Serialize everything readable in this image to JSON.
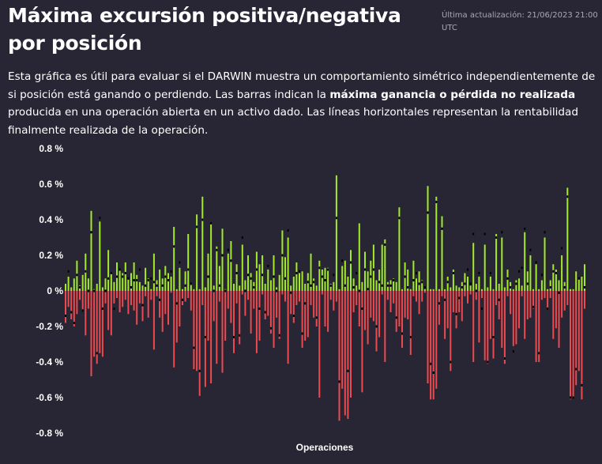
{
  "header": {
    "title": "Máxima excursión positiva/negativa por posición",
    "updated": "Última actualización: 21/06/2023 21:00 UTC"
  },
  "description": {
    "part1": "Esta gráfica es útil para evaluar si el DARWIN muestra un comportamiento simétrico independientemente de si posición está ganando o perdiendo. Las barras indican la ",
    "bold": "máxima ganancia o pérdida no realizada",
    "part2": " producida en una operación abierta en un activo dado. Las líneas horizontales representan la rentabilidad finalmente realizada de la operación."
  },
  "colors": {
    "positive": "#a2ea2a",
    "negative": "#ec4a4f",
    "realized": "#000000",
    "background": "#282634"
  },
  "chart_data": {
    "type": "bar",
    "title": "Máxima excursión positiva/negativa por posición",
    "xlabel": "Operaciones",
    "ylabel": "",
    "ylim": [
      -0.85,
      0.8
    ],
    "y_ticks": [
      {
        "value": 0.8,
        "label": "0.8 %"
      },
      {
        "value": 0.6,
        "label": "0.6 %"
      },
      {
        "value": 0.4,
        "label": "0.4 %"
      },
      {
        "value": 0.2,
        "label": "0.2 %"
      },
      {
        "value": 0,
        "label": "0 %"
      },
      {
        "value": -0.2,
        "label": "-0.2 %"
      },
      {
        "value": -0.4,
        "label": "-0.4 %"
      },
      {
        "value": -0.6,
        "label": "-0.6 %"
      },
      {
        "value": -0.8,
        "label": "-0.8 %"
      }
    ],
    "series_fields": [
      "max_gain_pct",
      "max_loss_pct",
      "realized_pct"
    ],
    "operations": [
      [
        0.04,
        -0.18,
        -0.14
      ],
      [
        0.08,
        -0.09,
        0.11
      ],
      [
        0.02,
        -0.16,
        -0.12
      ],
      [
        0.07,
        -0.2,
        -0.18
      ],
      [
        0.17,
        -0.13,
        0.09
      ],
      [
        0.03,
        -0.05,
        0.02
      ],
      [
        0.09,
        -0.11,
        -0.11
      ],
      [
        0.21,
        -0.25,
        0.11
      ],
      [
        0.07,
        -0.1,
        0.0
      ],
      [
        0.45,
        -0.48,
        0.33
      ],
      [
        0.01,
        -0.37,
        0.0
      ],
      [
        0.04,
        -0.41,
        -0.35
      ],
      [
        0.39,
        -0.35,
        0.41
      ],
      [
        0.02,
        -0.37,
        -0.1
      ],
      [
        0.07,
        -0.07,
        0.0
      ],
      [
        0.23,
        -0.22,
        0.07
      ],
      [
        0.1,
        -0.25,
        0.1
      ],
      [
        0.05,
        -0.07,
        -0.1
      ],
      [
        0.16,
        -0.04,
        0.08
      ],
      [
        0.12,
        -0.12,
        0.12
      ],
      [
        0.1,
        -0.09,
        0.08
      ],
      [
        0.16,
        -0.05,
        0.1
      ],
      [
        0.07,
        -0.13,
        0.07
      ],
      [
        0.1,
        -0.08,
        0.02
      ],
      [
        0.16,
        -0.11,
        0.06
      ],
      [
        0.09,
        -0.19,
        0.06
      ],
      [
        0.05,
        -0.07,
        0.12
      ],
      [
        0.03,
        -0.17,
        -0.08
      ],
      [
        0.13,
        -0.03,
        0.03
      ],
      [
        0.07,
        -0.15,
        0.06
      ],
      [
        0.01,
        -0.05,
        0.07
      ],
      [
        0.21,
        -0.33,
        0.05
      ],
      [
        0.06,
        -0.03,
        0.03
      ],
      [
        0.12,
        -0.15,
        -0.05
      ],
      [
        0.07,
        -0.23,
        0.03
      ],
      [
        0.14,
        -0.13,
        0.08
      ],
      [
        0.1,
        -0.19,
        0.06
      ],
      [
        0.08,
        -0.01,
        0.11
      ],
      [
        0.36,
        -0.43,
        0.25
      ],
      [
        0.01,
        -0.29,
        -0.07
      ],
      [
        0.13,
        -0.2,
        0.16
      ],
      [
        0.01,
        -0.08,
        -0.05
      ],
      [
        0.11,
        -0.06,
        0.03
      ],
      [
        0.32,
        -0.04,
        0.12
      ],
      [
        0.04,
        -0.11,
        0.04
      ],
      [
        0.01,
        -0.44,
        -0.32
      ],
      [
        0.43,
        -0.45,
        0.36
      ],
      [
        0.01,
        -0.59,
        -0.45
      ],
      [
        0.53,
        -0.08,
        0.4
      ],
      [
        0.02,
        -0.54,
        -0.26
      ],
      [
        0.21,
        -0.28,
        0.08
      ],
      [
        0.38,
        -0.52,
        0.38
      ],
      [
        0.03,
        -0.17,
        0.0
      ],
      [
        0.25,
        -0.41,
        0.23
      ],
      [
        0.14,
        -0.06,
        0.03
      ],
      [
        0.35,
        -0.46,
        0.2
      ],
      [
        0.01,
        -0.28,
        0.0
      ],
      [
        0.21,
        -0.1,
        0.23
      ],
      [
        0.28,
        -0.18,
        0.17
      ],
      [
        0.04,
        -0.35,
        -0.26
      ],
      [
        0.15,
        -0.07,
        0.1
      ],
      [
        0.03,
        -0.3,
        -0.25
      ],
      [
        0.26,
        -0.02,
        0.3
      ],
      [
        0.06,
        -0.14,
        0.0
      ],
      [
        0.2,
        -0.05,
        0.09
      ],
      [
        0.1,
        -0.24,
        0.07
      ],
      [
        0.05,
        -0.1,
        0.02
      ],
      [
        0.22,
        -0.35,
        0.12
      ],
      [
        0.15,
        -0.28,
        -0.1
      ],
      [
        0.2,
        -0.02,
        0.09
      ],
      [
        0.04,
        -0.16,
        -0.12
      ],
      [
        0.12,
        -0.14,
        0.14
      ],
      [
        0.06,
        -0.24,
        -0.21
      ],
      [
        0.2,
        -0.32,
        0.08
      ],
      [
        0.02,
        -0.15,
        0.0
      ],
      [
        0.09,
        -0.27,
        -0.25
      ],
      [
        0.34,
        -0.02,
        0.2
      ],
      [
        0.19,
        -0.06,
        0.07
      ],
      [
        0.3,
        -0.41,
        0.34
      ],
      [
        0.03,
        -0.13,
        -0.01
      ],
      [
        0.08,
        -0.18,
        -0.14
      ],
      [
        0.16,
        -0.08,
        0.1
      ],
      [
        0.1,
        -0.06,
        0.11
      ],
      [
        0.11,
        -0.32,
        -0.24
      ],
      [
        0.04,
        -0.28,
        -0.07
      ],
      [
        0.1,
        -0.26,
        0.05
      ],
      [
        0.21,
        -0.08,
        0.03
      ],
      [
        0.07,
        -0.15,
        0.05
      ],
      [
        0.03,
        -0.2,
        -0.15
      ],
      [
        0.17,
        -0.6,
        0.13
      ],
      [
        0.12,
        -0.02,
        0.08
      ],
      [
        0.13,
        -0.2,
        0.06
      ],
      [
        0.13,
        -0.23,
        0.12
      ],
      [
        0.04,
        -0.05,
        0.03
      ],
      [
        0.05,
        -0.11,
        0.09
      ],
      [
        0.65,
        -0.06,
        0.41
      ],
      [
        0.01,
        -0.73,
        -0.51
      ],
      [
        0.14,
        -0.55,
        0.17
      ],
      [
        0.17,
        -0.7,
        0.03
      ],
      [
        0.08,
        -0.72,
        -0.45
      ],
      [
        0.23,
        -0.6,
        0.16
      ],
      [
        0.07,
        -0.12,
        0.02
      ],
      [
        0.03,
        -0.08,
        0.1
      ],
      [
        0.38,
        -0.2,
        0.0
      ],
      [
        0.05,
        -0.57,
        -0.1
      ],
      [
        0.22,
        -0.22,
        0.12
      ],
      [
        0.11,
        -0.3,
        0.01
      ],
      [
        0.17,
        -0.15,
        0.08
      ],
      [
        0.26,
        -0.17,
        0.12
      ],
      [
        0.06,
        -0.34,
        -0.2
      ],
      [
        0.12,
        -0.26,
        0.05
      ],
      [
        0.26,
        -0.02,
        0.03
      ],
      [
        0.29,
        -0.4,
        0.26
      ],
      [
        0.05,
        -0.05,
        0.03
      ],
      [
        0.06,
        -0.12,
        0.03
      ],
      [
        0.07,
        -0.07,
        0.06
      ],
      [
        0.05,
        -0.23,
        -0.15
      ],
      [
        0.47,
        -0.2,
        0.41
      ],
      [
        0.01,
        -0.32,
        -0.24
      ],
      [
        0.16,
        -0.15,
        0.08
      ],
      [
        0.12,
        -0.16,
        0.02
      ],
      [
        0.01,
        -0.36,
        -0.26
      ],
      [
        0.17,
        -0.03,
        0.06
      ],
      [
        0.07,
        -0.06,
        0.1
      ],
      [
        0.11,
        -0.13,
        0.04
      ],
      [
        0.06,
        -0.06,
        0.05
      ],
      [
        0.01,
        -0.01,
        0.02
      ],
      [
        0.59,
        -0.52,
        0.44
      ],
      [
        0.01,
        -0.61,
        -0.41
      ],
      [
        0.01,
        -0.61,
        -0.46
      ],
      [
        0.53,
        -0.55,
        0.5
      ],
      [
        0.01,
        -0.19,
        -0.07
      ],
      [
        0.42,
        -0.03,
        0.35
      ],
      [
        0.01,
        -0.27,
        -0.05
      ],
      [
        0.08,
        -0.21,
        0.05
      ],
      [
        0.02,
        -0.45,
        -0.4
      ],
      [
        0.12,
        -0.12,
        0.1
      ],
      [
        0.03,
        -0.21,
        -0.13
      ],
      [
        0.02,
        -0.12,
        -0.04
      ],
      [
        0.05,
        -0.17,
        0.02
      ],
      [
        0.1,
        -0.03,
        0.04
      ],
      [
        0.08,
        -0.07,
        0.12
      ],
      [
        0.03,
        -0.02,
        0.04
      ],
      [
        0.27,
        -0.4,
        0.32
      ],
      [
        0.04,
        -0.05,
        0.0
      ],
      [
        0.08,
        -0.29,
        0.1
      ],
      [
        0.01,
        -0.04,
        -0.1
      ],
      [
        0.26,
        -0.39,
        0.32
      ],
      [
        0.02,
        -0.41,
        -0.4
      ],
      [
        0.08,
        -0.27,
        0.1
      ],
      [
        0.01,
        -0.38,
        -0.26
      ],
      [
        0.32,
        -0.08,
        0.3
      ],
      [
        0.04,
        -0.16,
        -0.05
      ],
      [
        0.3,
        -0.32,
        0.33
      ],
      [
        0.02,
        -0.41,
        -0.38
      ],
      [
        0.12,
        -0.03,
        0.07
      ],
      [
        0.05,
        -0.13,
        0.02
      ],
      [
        0.01,
        -0.31,
        -0.34
      ],
      [
        0.06,
        -0.3,
        0.04
      ],
      [
        0.07,
        -0.21,
        0.11
      ],
      [
        0.03,
        -0.03,
        0.13
      ],
      [
        0.33,
        -0.27,
        0.35
      ],
      [
        0.11,
        -0.16,
        0.04
      ],
      [
        0.2,
        -0.15,
        0.23
      ],
      [
        0.01,
        -0.1,
        -0.09
      ],
      [
        0.15,
        -0.4,
        0.16
      ],
      [
        0.01,
        -0.4,
        -0.35
      ],
      [
        0.06,
        -0.05,
        0.09
      ],
      [
        0.3,
        -0.04,
        0.33
      ],
      [
        0.01,
        -0.1,
        -0.1
      ],
      [
        0.06,
        -0.04,
        0.02
      ],
      [
        0.15,
        -0.27,
        0.11
      ],
      [
        0.12,
        -0.21,
        0.1
      ],
      [
        0.06,
        -0.32,
        -0.01
      ],
      [
        0.2,
        -0.15,
        0.24
      ],
      [
        0.05,
        -0.11,
        0.02
      ],
      [
        0.58,
        -0.08,
        0.53
      ],
      [
        0.01,
        -0.61,
        -0.6
      ],
      [
        0.01,
        -0.6,
        -0.6
      ],
      [
        0.11,
        -0.53,
        -0.44
      ],
      [
        0.07,
        -0.45,
        0.07
      ],
      [
        0.08,
        -0.61,
        -0.53
      ],
      [
        0.15,
        -0.1,
        0.02
      ]
    ]
  }
}
